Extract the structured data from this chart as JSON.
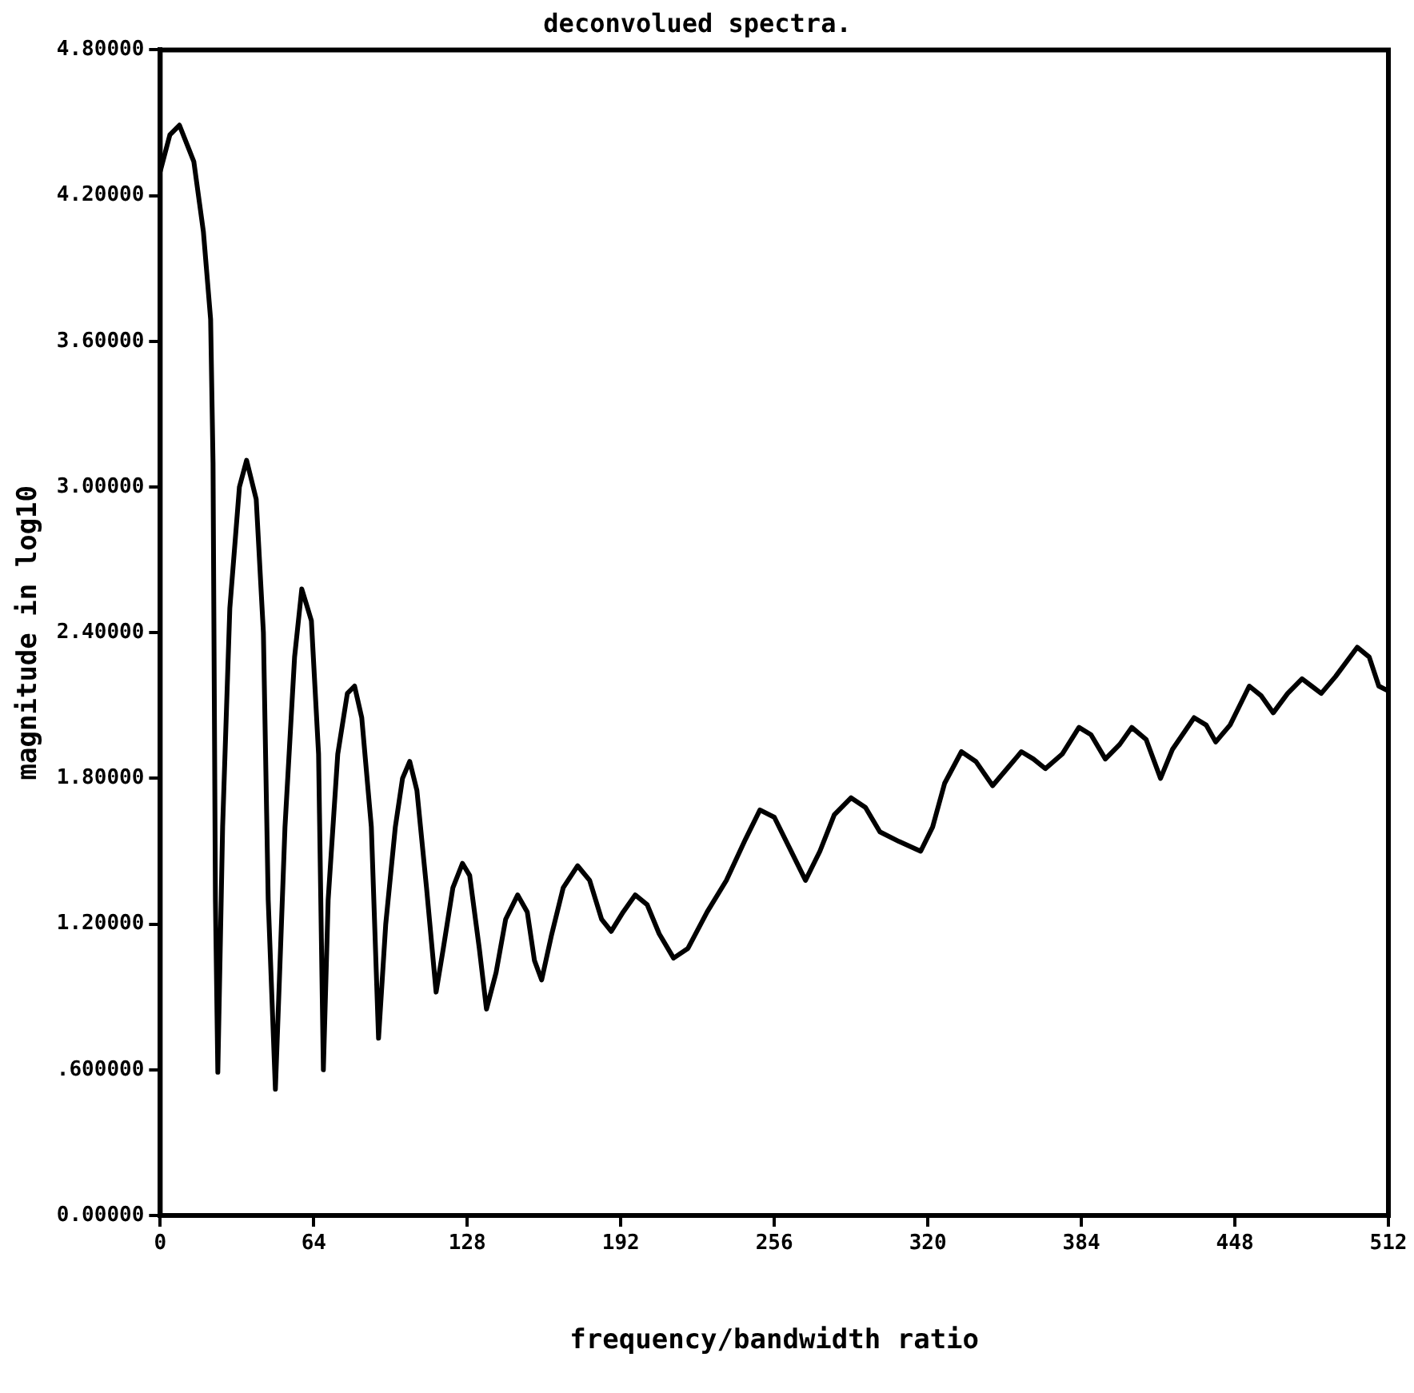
{
  "chart_data": {
    "type": "line",
    "title": "deconvolued spectra.",
    "xlabel": "frequency/bandwidth ratio",
    "ylabel": "magnitude in log10",
    "xlim": [
      0,
      512
    ],
    "xticks": [
      0,
      64,
      128,
      192,
      256,
      320,
      384,
      448,
      512
    ],
    "ylim": [
      0,
      4.8
    ],
    "yticks": [
      {
        "value": 0,
        "label": "0.00000"
      },
      {
        "value": 0.6,
        "label": ".600000"
      },
      {
        "value": 1.2,
        "label": "1.20000"
      },
      {
        "value": 1.8,
        "label": "1.80000"
      },
      {
        "value": 2.4,
        "label": "2.40000"
      },
      {
        "value": 3,
        "label": "3.00000"
      },
      {
        "value": 3.6,
        "label": "3.60000"
      },
      {
        "value": 4.2,
        "label": "4.20000"
      },
      {
        "value": 4.8,
        "label": "4.80000"
      }
    ],
    "grid": false,
    "legend": false,
    "marker": "none",
    "line_style": "solid",
    "series": [
      {
        "color": "#000000",
        "x": [
          0,
          4,
          8,
          14,
          18,
          21,
          22,
          23,
          24,
          26,
          29,
          33,
          36,
          40,
          43,
          45,
          48,
          52,
          56,
          59,
          63,
          66,
          68,
          70,
          74,
          78,
          81,
          84,
          88,
          91,
          94,
          98,
          101,
          104,
          107,
          111,
          115,
          118,
          122,
          126,
          129,
          133,
          136,
          140,
          144,
          149,
          153,
          156,
          159,
          163,
          168,
          174,
          179,
          184,
          188,
          193,
          198,
          203,
          208,
          214,
          220,
          228,
          236,
          244,
          250,
          256,
          262,
          269,
          275,
          281,
          288,
          294,
          300,
          308,
          317,
          322,
          327,
          334,
          340,
          347,
          353,
          359,
          364,
          369,
          376,
          383,
          388,
          394,
          400,
          405,
          411,
          417,
          422,
          431,
          436,
          440,
          446,
          454,
          459,
          464,
          470,
          476,
          480,
          484,
          490,
          499,
          504,
          508,
          512
        ],
        "values": [
          4.3,
          4.45,
          4.49,
          4.34,
          4.05,
          3.69,
          3.1,
          1.3,
          0.59,
          1.6,
          2.5,
          3.0,
          3.11,
          2.95,
          2.4,
          1.3,
          0.52,
          1.6,
          2.3,
          2.58,
          2.45,
          1.9,
          0.6,
          1.3,
          1.9,
          2.15,
          2.18,
          2.05,
          1.6,
          0.73,
          1.2,
          1.6,
          1.8,
          1.87,
          1.75,
          1.35,
          0.92,
          1.1,
          1.35,
          1.45,
          1.4,
          1.1,
          0.85,
          1.0,
          1.22,
          1.32,
          1.25,
          1.05,
          0.97,
          1.15,
          1.35,
          1.44,
          1.38,
          1.22,
          1.17,
          1.25,
          1.32,
          1.28,
          1.16,
          1.06,
          1.1,
          1.25,
          1.38,
          1.55,
          1.67,
          1.64,
          1.52,
          1.38,
          1.5,
          1.65,
          1.72,
          1.68,
          1.58,
          1.54,
          1.5,
          1.6,
          1.78,
          1.91,
          1.87,
          1.77,
          1.84,
          1.91,
          1.88,
          1.84,
          1.9,
          2.01,
          1.98,
          1.88,
          1.94,
          2.01,
          1.96,
          1.8,
          1.92,
          2.05,
          2.02,
          1.95,
          2.02,
          2.18,
          2.14,
          2.07,
          2.15,
          2.21,
          2.18,
          2.15,
          2.22,
          2.34,
          2.3,
          2.18,
          2.16
        ]
      }
    ]
  }
}
